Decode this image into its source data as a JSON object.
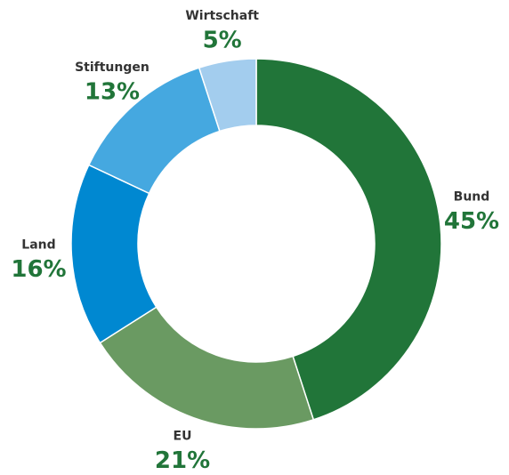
{
  "chart_data": {
    "type": "donut",
    "categories": [
      "Bund",
      "EU",
      "Land",
      "Stiftungen",
      "Wirtschaft"
    ],
    "values": [
      45,
      21,
      16,
      13,
      5
    ],
    "value_labels": [
      "45%",
      "21%",
      "16%",
      "13%",
      "5%"
    ],
    "colors": [
      "#217539",
      "#6a9a62",
      "#0088d1",
      "#45a8e0",
      "#a3cdee"
    ]
  }
}
